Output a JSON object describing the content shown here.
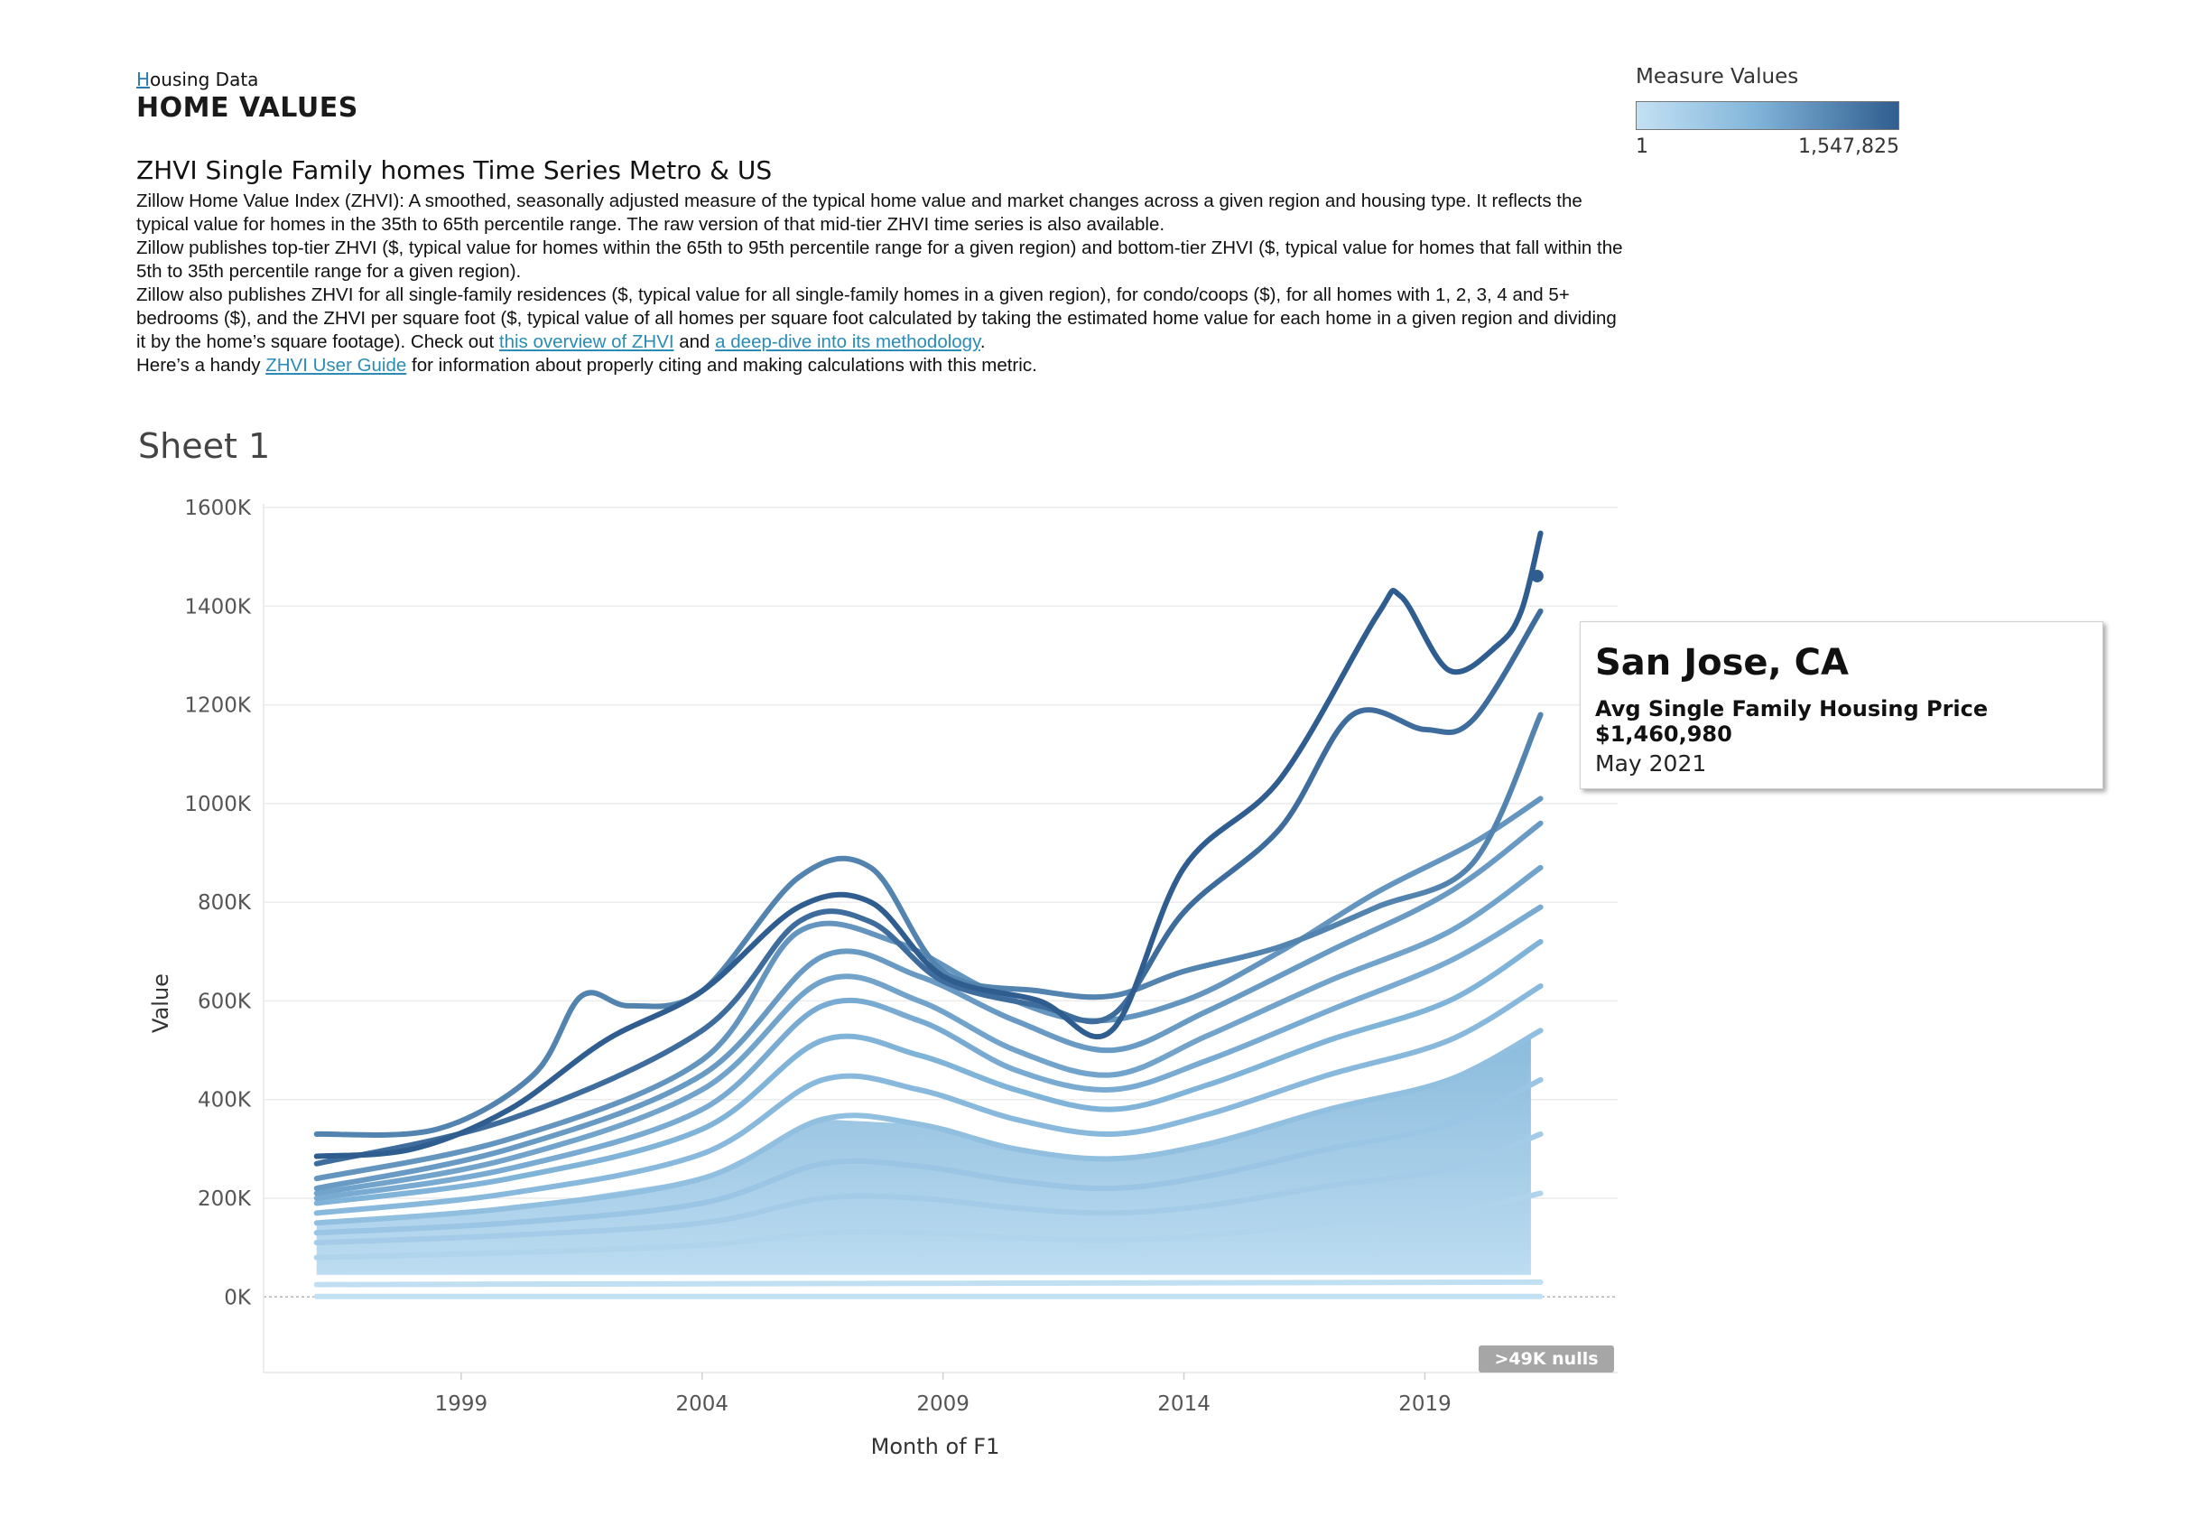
{
  "header": {
    "kicker_first": "H",
    "kicker_rest": "ousing Data",
    "title": "HOME VALUES",
    "subtitle": "ZHVI Single Family homes Time Series Metro & US"
  },
  "description": {
    "p1": "Zillow Home Value Index (ZHVI): A smoothed, seasonally adjusted measure of the typical home value and market changes across a given region and housing type. It reflects the typical value for homes in the 35th to 65th percentile range. The raw version of that mid-tier ZHVI time series is also available.",
    "p2": "Zillow publishes top-tier ZHVI ($, typical value for homes within the 65th to 95th percentile range for a given region) and bottom-tier ZHVI ($, typical value for homes that fall within the 5th to 35th percentile range for a given region).",
    "p3_before": "Zillow also publishes ZHVI for all single-family residences ($, typical value for all single-family homes in a given region), for condo/coops ($), for all homes with 1, 2, 3, 4 and 5+ bedrooms ($), and the ZHVI per square foot ($, typical value of all homes per square foot calculated by taking the estimated home value for each home in a given region and dividing it by the home’s square footage). Check out ",
    "link_overview": "this overview of ZHVI",
    "p3_and": " and ",
    "link_methodology": "a deep-dive into its methodology",
    "p3_end": ".",
    "p4_before": "Here’s a handy ",
    "link_guide": "ZHVI User Guide",
    "p4_after": " for information about properly citing and making calculations with this metric."
  },
  "sheet_title": "Sheet 1",
  "legend": {
    "title": "Measure Values",
    "min_label": "1",
    "max_label": "1,547,825",
    "color_low": "#c3e1f4",
    "color_mid": "#82b5da",
    "color_high": "#2f5d8f"
  },
  "tooltip": {
    "city": "San Jose, CA",
    "label": "Avg Single Family Housing Price $1,460,980",
    "date": "May 2021"
  },
  "nulls_badge": ">49K nulls",
  "chart_data": {
    "type": "line",
    "title": "Sheet 1",
    "xlabel": "Month of F1",
    "ylabel": "Value",
    "xlim": [
      1994.9,
      2023.0
    ],
    "ylim": [
      -80000,
      1600000
    ],
    "x_ticks": [
      1999,
      2004,
      2009,
      2014,
      2019
    ],
    "x_tick_labels": [
      "1999",
      "2004",
      "2009",
      "2014",
      "2019"
    ],
    "y_ticks": [
      0,
      200000,
      400000,
      600000,
      800000,
      1000000,
      1200000,
      1400000,
      1600000
    ],
    "y_tick_labels": [
      "0K",
      "200K",
      "400K",
      "600K",
      "800K",
      "1000K",
      "1200K",
      "1400K",
      "1600K"
    ],
    "grid": "horizontal",
    "series": [
      {
        "x": [
          1996.0,
          1998.0,
          2000.0,
          2002.0,
          2004.0,
          2006.0,
          2007.5,
          2009.0,
          2011.0,
          2012.5,
          2014.0,
          2016.0,
          2018.0,
          2018.5,
          2019.5,
          2020.5,
          2021.0,
          2021.4
        ],
        "values": [
          285000,
          300000,
          380000,
          520000,
          620000,
          790000,
          800000,
          650000,
          600000,
          540000,
          870000,
          1050000,
          1380000,
          1420000,
          1270000,
          1320000,
          1390000,
          1547825
        ]
      },
      {
        "x": [
          1996.0,
          2000.0,
          2004.0,
          2006.0,
          2007.5,
          2009.0,
          2011.0,
          2012.5,
          2014.0,
          2016.0,
          2017.5,
          2019.0,
          2020.0,
          2021.4
        ],
        "values": [
          270000,
          360000,
          540000,
          760000,
          760000,
          640000,
          590000,
          570000,
          780000,
          950000,
          1180000,
          1150000,
          1170000,
          1390000
        ]
      },
      {
        "x": [
          1996.0,
          1998.5,
          2000.5,
          2001.5,
          2002.5,
          2004.0,
          2006.0,
          2007.5,
          2009.0,
          2011.0,
          2012.5,
          2014.0,
          2016.0,
          2018.0,
          2020.0,
          2021.4
        ],
        "values": [
          330000,
          340000,
          450000,
          610000,
          590000,
          620000,
          850000,
          870000,
          660000,
          620000,
          610000,
          660000,
          710000,
          790000,
          880000,
          1180000
        ]
      },
      {
        "x": [
          1996.0,
          2000.0,
          2004.0,
          2006.0,
          2008.0,
          2010.0,
          2012.0,
          2014.0,
          2016.0,
          2018.0,
          2020.0,
          2021.4
        ],
        "values": [
          240000,
          320000,
          480000,
          740000,
          720000,
          620000,
          560000,
          600000,
          700000,
          820000,
          920000,
          1010000
        ]
      },
      {
        "x": [
          1996.0,
          2000.0,
          2004.0,
          2006.5,
          2008.5,
          2010.5,
          2012.5,
          2014.5,
          2017.0,
          2019.5,
          2021.4
        ],
        "values": [
          220000,
          300000,
          450000,
          690000,
          650000,
          560000,
          500000,
          580000,
          700000,
          820000,
          960000
        ]
      },
      {
        "x": [
          1996.0,
          2000.0,
          2004.0,
          2006.5,
          2008.5,
          2010.5,
          2012.5,
          2014.5,
          2017.0,
          2019.5,
          2021.4
        ],
        "values": [
          210000,
          280000,
          420000,
          640000,
          600000,
          500000,
          450000,
          530000,
          640000,
          740000,
          870000
        ]
      },
      {
        "x": [
          1996.0,
          2000.0,
          2004.0,
          2006.5,
          2008.5,
          2010.5,
          2012.5,
          2014.5,
          2017.0,
          2019.5,
          2021.4
        ],
        "values": [
          200000,
          260000,
          380000,
          590000,
          560000,
          460000,
          420000,
          480000,
          580000,
          680000,
          790000
        ]
      },
      {
        "x": [
          1996.0,
          2000.0,
          2004.0,
          2006.5,
          2008.5,
          2010.5,
          2012.5,
          2014.5,
          2017.0,
          2019.5,
          2021.4
        ],
        "values": [
          190000,
          240000,
          340000,
          520000,
          490000,
          420000,
          380000,
          430000,
          520000,
          600000,
          720000
        ]
      },
      {
        "x": [
          1996.0,
          2000.0,
          2004.0,
          2006.5,
          2008.5,
          2010.5,
          2012.5,
          2014.5,
          2017.0,
          2019.5,
          2021.4
        ],
        "values": [
          170000,
          210000,
          290000,
          440000,
          420000,
          360000,
          330000,
          370000,
          450000,
          520000,
          630000
        ]
      },
      {
        "x": [
          1996.0,
          2000.0,
          2004.0,
          2006.5,
          2008.5,
          2010.5,
          2012.5,
          2014.5,
          2017.0,
          2019.5,
          2021.4
        ],
        "values": [
          150000,
          180000,
          240000,
          360000,
          350000,
          300000,
          280000,
          310000,
          380000,
          440000,
          540000
        ]
      },
      {
        "x": [
          1996.0,
          2000.0,
          2004.0,
          2006.5,
          2008.5,
          2010.5,
          2012.5,
          2014.5,
          2017.0,
          2019.5,
          2021.4
        ],
        "values": [
          130000,
          150000,
          190000,
          270000,
          265000,
          235000,
          220000,
          245000,
          300000,
          350000,
          440000
        ]
      },
      {
        "x": [
          1996.0,
          2000.0,
          2004.0,
          2006.5,
          2008.5,
          2010.5,
          2012.5,
          2014.5,
          2017.0,
          2019.5,
          2021.4
        ],
        "values": [
          110000,
          125000,
          150000,
          200000,
          200000,
          180000,
          170000,
          185000,
          225000,
          260000,
          330000
        ]
      },
      {
        "x": [
          1996.0,
          2000.0,
          2004.0,
          2006.5,
          2008.5,
          2010.5,
          2012.5,
          2014.5,
          2017.0,
          2019.5,
          2021.4
        ],
        "values": [
          80000,
          90000,
          105000,
          130000,
          130000,
          120000,
          115000,
          125000,
          150000,
          170000,
          210000
        ]
      },
      {
        "x": [
          1996.0,
          2021.4
        ],
        "values": [
          25000,
          30000
        ]
      },
      {
        "x": [
          1996.0,
          2021.4
        ],
        "values": [
          1000,
          1000
        ]
      }
    ],
    "highlight": {
      "series": "San Jose, CA",
      "x": 2021.33,
      "value": 1460980
    }
  }
}
